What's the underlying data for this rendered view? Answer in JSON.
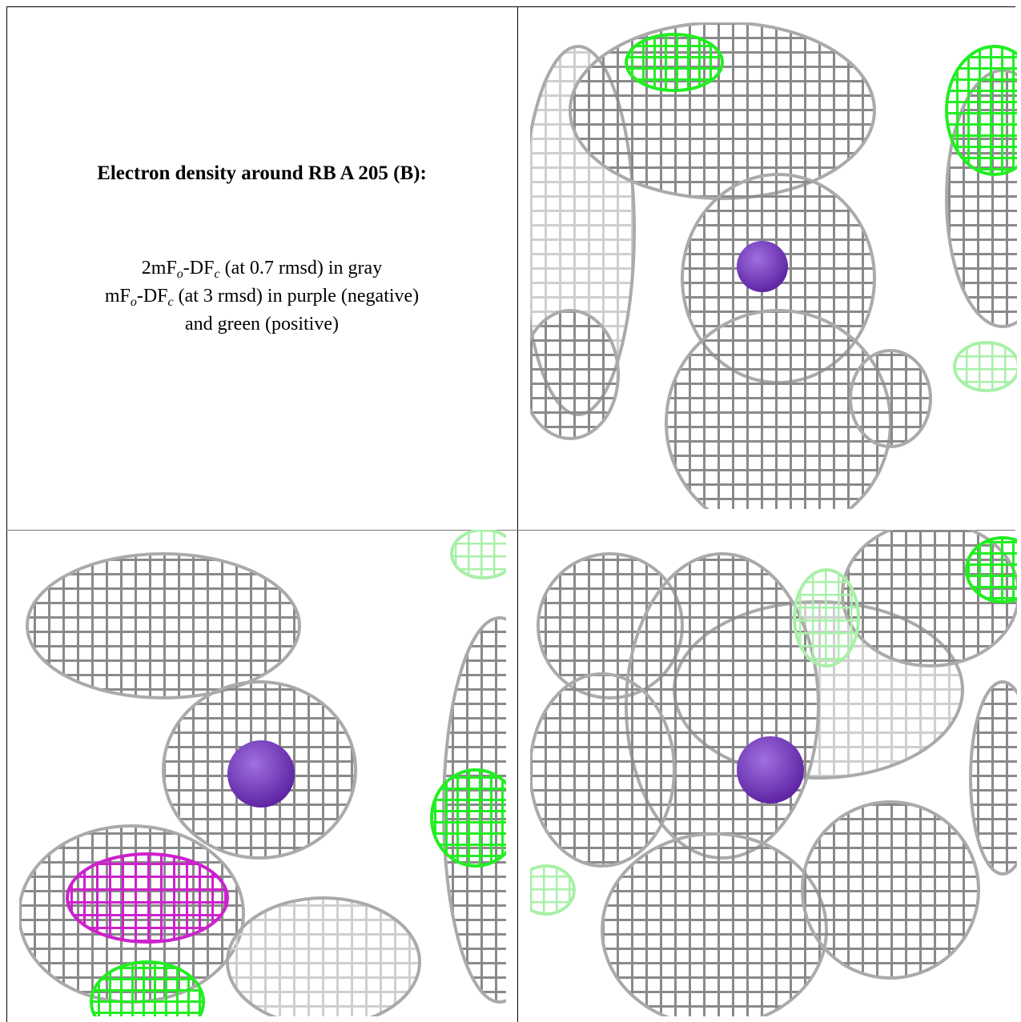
{
  "caption": {
    "title": "Electron density around RB A 205 (B):",
    "lines": [
      [
        "2mF",
        "o",
        "-DF",
        "c",
        " (at 0.7 rmsd) in gray"
      ],
      [
        "mF",
        "o",
        "-DF",
        "c",
        " (at 3 rmsd) in purple (negative)"
      ],
      [
        "and green (positive)"
      ]
    ]
  }
}
